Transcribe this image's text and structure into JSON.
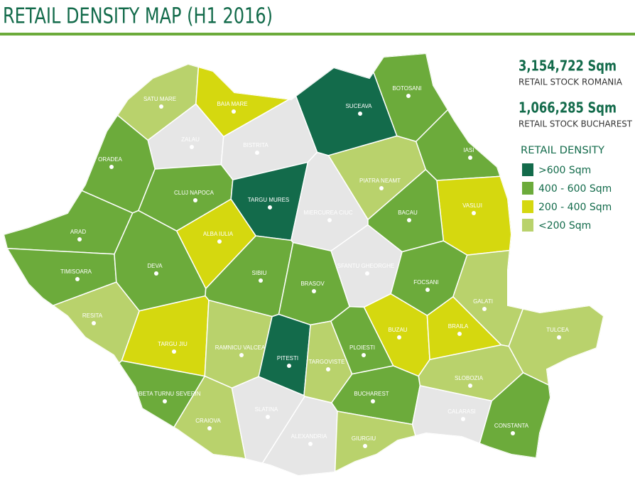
{
  "title": "RETAIL DENSITY MAP (H1 2016)",
  "stats": [
    {
      "value": "3,154,722 Sqm",
      "label": "RETAIL STOCK ROMANIA"
    },
    {
      "value": "1,066,285 Sqm",
      "label": "RETAIL STOCK BUCHAREST"
    }
  ],
  "legend": {
    "title": "RETAIL DENSITY",
    "items": [
      {
        "label": ">600 Sqm",
        "color": "#136b4b"
      },
      {
        "label": "400 - 600 Sqm",
        "color": "#6cab3b"
      },
      {
        "label": "200 - 400 Sqm",
        "color": "#d5d80f"
      },
      {
        "label": "<200 Sqm",
        "color": "#b9d26c"
      }
    ]
  },
  "no_data_color": "#e6e6e6",
  "counties": [
    {
      "name": "SATU MARE",
      "class": 3
    },
    {
      "name": "BAIA MARE",
      "class": 2
    },
    {
      "name": "SUCEAVA",
      "class": 0
    },
    {
      "name": "BOTOSANI",
      "class": 1
    },
    {
      "name": "ZALAU",
      "class": null
    },
    {
      "name": "BISTRITA",
      "class": null
    },
    {
      "name": "IASI",
      "class": 1
    },
    {
      "name": "ORADEA",
      "class": 1
    },
    {
      "name": "CLUJ NAPOCA",
      "class": 1
    },
    {
      "name": "TARGU MURES",
      "class": 0
    },
    {
      "name": "PIATRA NEAMT",
      "class": 3
    },
    {
      "name": "VASLUI",
      "class": 2
    },
    {
      "name": "MIERCUREA CIUC",
      "class": null
    },
    {
      "name": "BACAU",
      "class": 1
    },
    {
      "name": "ARAD",
      "class": 1
    },
    {
      "name": "ALBA IULIA",
      "class": 2
    },
    {
      "name": "TIMISOARA",
      "class": 1
    },
    {
      "name": "DEVA",
      "class": 1
    },
    {
      "name": "SIBIU",
      "class": 1
    },
    {
      "name": "BRASOV",
      "class": 1
    },
    {
      "name": "SFANTU GHEORGHE",
      "class": null
    },
    {
      "name": "FOCSANI",
      "class": 1
    },
    {
      "name": "GALATI",
      "class": 3
    },
    {
      "name": "RESITA",
      "class": 3
    },
    {
      "name": "TARGU JIU",
      "class": 2
    },
    {
      "name": "RAMNICU VALCEA",
      "class": 3
    },
    {
      "name": "PITESTI",
      "class": 0
    },
    {
      "name": "TARGOVISTE",
      "class": 3
    },
    {
      "name": "PLOIESTI",
      "class": 1
    },
    {
      "name": "BUZAU",
      "class": 2
    },
    {
      "name": "BRAILA",
      "class": 2
    },
    {
      "name": "TULCEA",
      "class": 3
    },
    {
      "name": "DROBETA TURNU SEVERIN",
      "class": 1
    },
    {
      "name": "SLOBOZIA",
      "class": 3
    },
    {
      "name": "BUCHAREST",
      "class": 1
    },
    {
      "name": "CRAIOVA",
      "class": 3
    },
    {
      "name": "SLATINA",
      "class": null
    },
    {
      "name": "ALEXANDRIA",
      "class": null
    },
    {
      "name": "GIURGIU",
      "class": 3
    },
    {
      "name": "CALARASI",
      "class": null
    },
    {
      "name": "CONSTANTA",
      "class": 1
    }
  ]
}
